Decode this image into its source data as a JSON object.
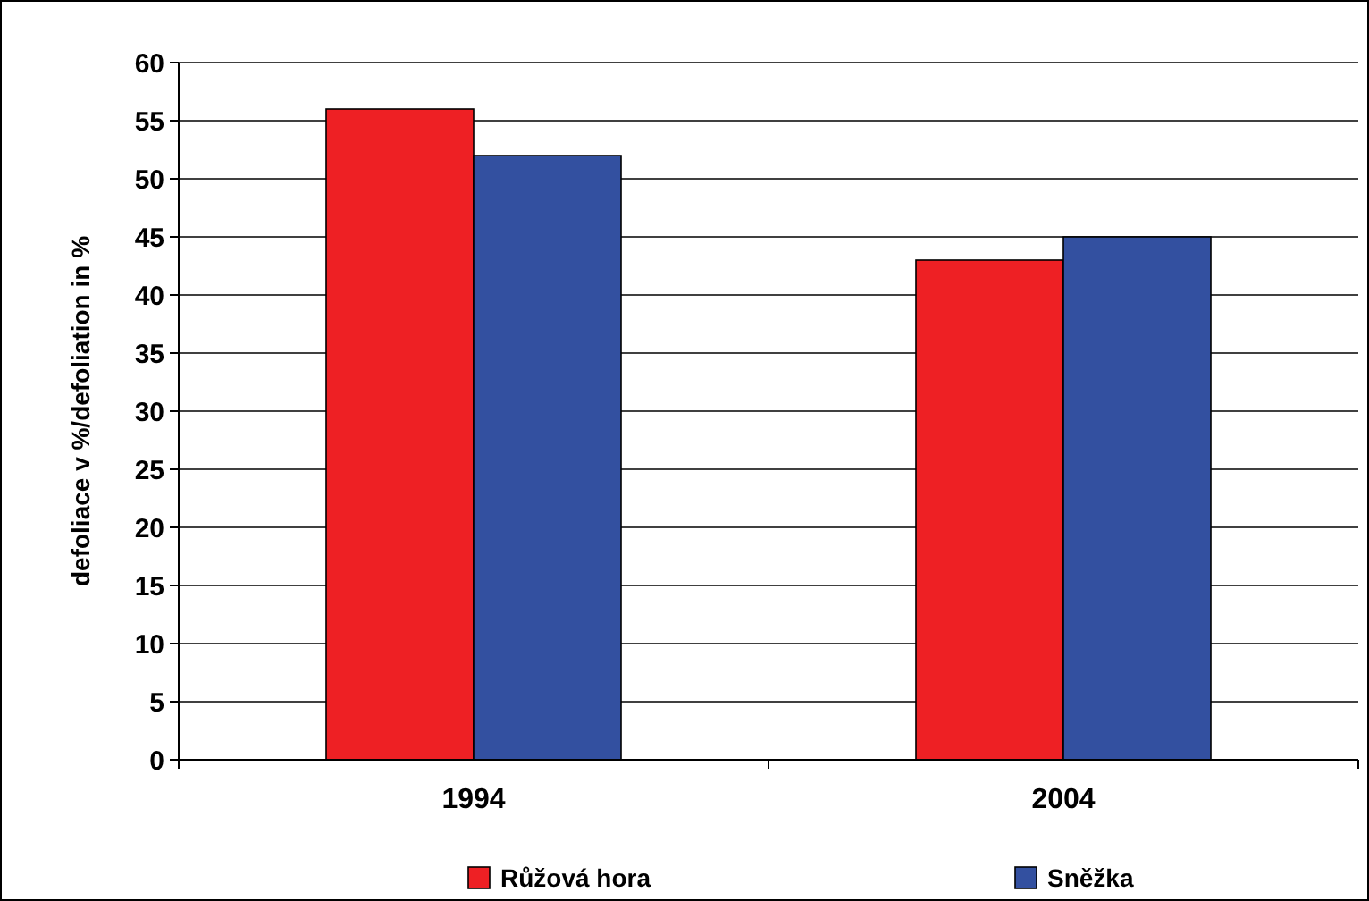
{
  "chart_data": {
    "type": "bar",
    "ylabel": "defoliace v %/defoliation in %",
    "categories": [
      "1994",
      "2004"
    ],
    "series": [
      {
        "name": "Růžová hora",
        "color": "#ee2024",
        "values": [
          56,
          43
        ]
      },
      {
        "name": "Sněžka",
        "color": "#3350a0",
        "values": [
          52,
          45
        ]
      }
    ],
    "ylim": [
      0,
      60
    ],
    "yticks": [
      0,
      5,
      10,
      15,
      20,
      25,
      30,
      35,
      40,
      45,
      50,
      55,
      60
    ],
    "grid": "y",
    "legend": "bottom"
  }
}
